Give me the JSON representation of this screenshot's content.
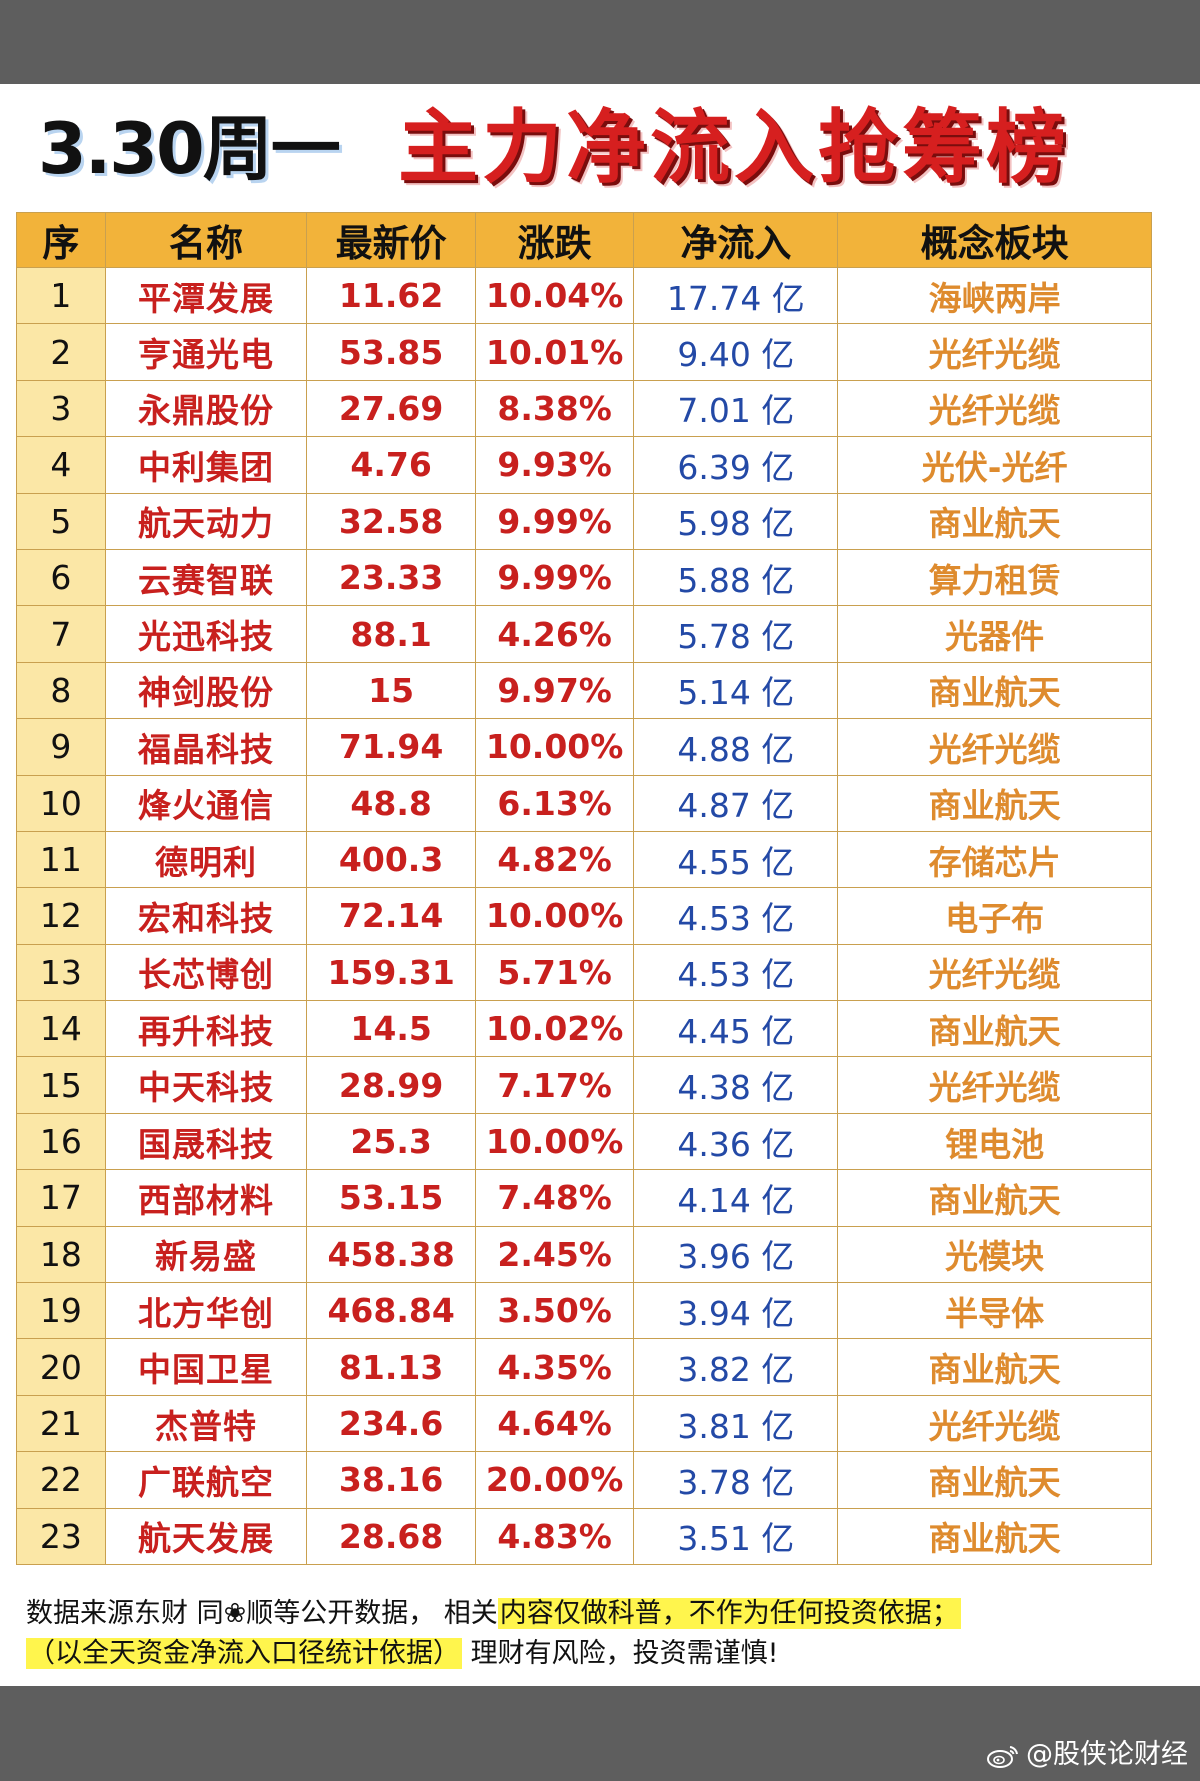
{
  "header": {
    "date": "3.30周一",
    "title": "主力净流入抢筹榜"
  },
  "table": {
    "columns": [
      "序",
      "名称",
      "最新价",
      "涨跌",
      "净流入",
      "概念板块"
    ],
    "rows": [
      {
        "idx": "1",
        "name": "平潭发展",
        "price": "11.62",
        "change": "10.04%",
        "flow": "17.74 亿",
        "concept": "海峡两岸"
      },
      {
        "idx": "2",
        "name": "亨通光电",
        "price": "53.85",
        "change": "10.01%",
        "flow": "9.40 亿",
        "concept": "光纤光缆"
      },
      {
        "idx": "3",
        "name": "永鼎股份",
        "price": "27.69",
        "change": "8.38%",
        "flow": "7.01 亿",
        "concept": "光纤光缆"
      },
      {
        "idx": "4",
        "name": "中利集团",
        "price": "4.76",
        "change": "9.93%",
        "flow": "6.39 亿",
        "concept": "光伏-光纤"
      },
      {
        "idx": "5",
        "name": "航天动力",
        "price": "32.58",
        "change": "9.99%",
        "flow": "5.98 亿",
        "concept": "商业航天"
      },
      {
        "idx": "6",
        "name": "云赛智联",
        "price": "23.33",
        "change": "9.99%",
        "flow": "5.88 亿",
        "concept": "算力租赁"
      },
      {
        "idx": "7",
        "name": "光迅科技",
        "price": "88.1",
        "change": "4.26%",
        "flow": "5.78 亿",
        "concept": "光器件"
      },
      {
        "idx": "8",
        "name": "神剑股份",
        "price": "15",
        "change": "9.97%",
        "flow": "5.14 亿",
        "concept": "商业航天"
      },
      {
        "idx": "9",
        "name": "福晶科技",
        "price": "71.94",
        "change": "10.00%",
        "flow": "4.88 亿",
        "concept": "光纤光缆"
      },
      {
        "idx": "10",
        "name": "烽火通信",
        "price": "48.8",
        "change": "6.13%",
        "flow": "4.87 亿",
        "concept": "商业航天"
      },
      {
        "idx": "11",
        "name": "德明利",
        "price": "400.3",
        "change": "4.82%",
        "flow": "4.55 亿",
        "concept": "存储芯片"
      },
      {
        "idx": "12",
        "name": "宏和科技",
        "price": "72.14",
        "change": "10.00%",
        "flow": "4.53 亿",
        "concept": "电子布"
      },
      {
        "idx": "13",
        "name": "长芯博创",
        "price": "159.31",
        "change": "5.71%",
        "flow": "4.53 亿",
        "concept": "光纤光缆"
      },
      {
        "idx": "14",
        "name": "再升科技",
        "price": "14.5",
        "change": "10.02%",
        "flow": "4.45 亿",
        "concept": "商业航天"
      },
      {
        "idx": "15",
        "name": "中天科技",
        "price": "28.99",
        "change": "7.17%",
        "flow": "4.38 亿",
        "concept": "光纤光缆"
      },
      {
        "idx": "16",
        "name": "国晟科技",
        "price": "25.3",
        "change": "10.00%",
        "flow": "4.36 亿",
        "concept": "锂电池"
      },
      {
        "idx": "17",
        "name": "西部材料",
        "price": "53.15",
        "change": "7.48%",
        "flow": "4.14 亿",
        "concept": "商业航天"
      },
      {
        "idx": "18",
        "name": "新易盛",
        "price": "458.38",
        "change": "2.45%",
        "flow": "3.96 亿",
        "concept": "光模块"
      },
      {
        "idx": "19",
        "name": "北方华创",
        "price": "468.84",
        "change": "3.50%",
        "flow": "3.94 亿",
        "concept": "半导体"
      },
      {
        "idx": "20",
        "name": "中国卫星",
        "price": "81.13",
        "change": "4.35%",
        "flow": "3.82 亿",
        "concept": "商业航天"
      },
      {
        "idx": "21",
        "name": "杰普特",
        "price": "234.6",
        "change": "4.64%",
        "flow": "3.81 亿",
        "concept": "光纤光缆"
      },
      {
        "idx": "22",
        "name": "广联航空",
        "price": "38.16",
        "change": "20.00%",
        "flow": "3.78 亿",
        "concept": "商业航天"
      },
      {
        "idx": "23",
        "name": "航天发展",
        "price": "28.68",
        "change": "4.83%",
        "flow": "3.51 亿",
        "concept": "商业航天"
      }
    ]
  },
  "footer": {
    "line1_plain": "数据来源东财 同❀顺等公开数据， 相关",
    "line1_highlight": "内容仅做科普，不作为任何投资依据；",
    "line2_highlight": "（以全天资金净流入口径统计依据）",
    "line2_plain": " 理财有风险，投资需谨慎!"
  },
  "watermark": {
    "icon": "weibo-icon",
    "text": "@股侠论财经"
  },
  "colors": {
    "header_bg": "#f2b33a",
    "index_bg": "#fbe7a6",
    "name_red": "#c8201e",
    "flow_blue": "#2349a6",
    "concept_orange": "#de8b2e",
    "title_red": "#d61f1f",
    "highlight": "#fff54d"
  }
}
